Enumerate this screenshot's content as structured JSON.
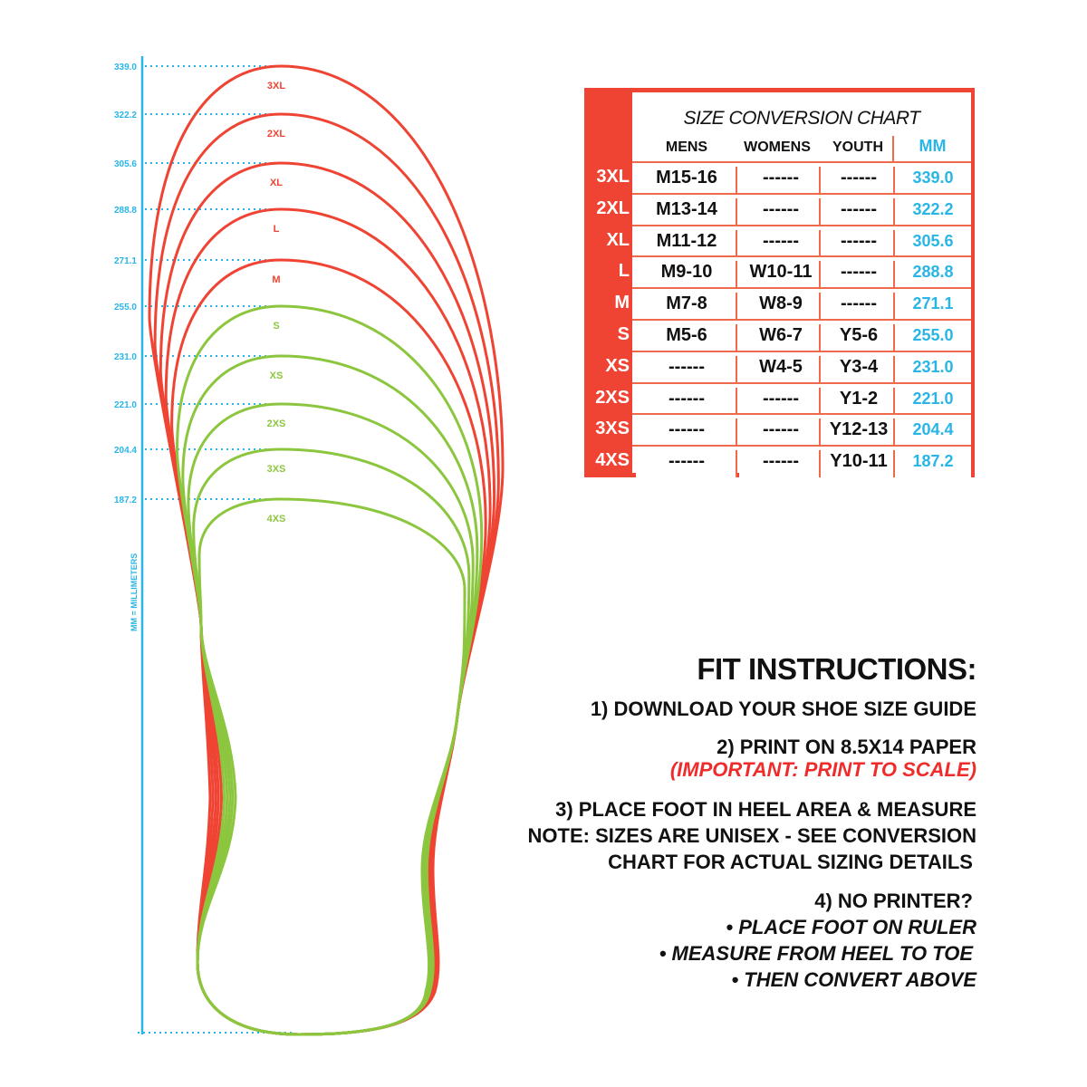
{
  "ruler": {
    "caption": "MM = MILLIMETERS",
    "color": "#29b6e6",
    "marks": [
      "339.0",
      "322.2",
      "305.6",
      "288.8",
      "271.1",
      "255.0",
      "231.0",
      "221.0",
      "204.4",
      "187.2"
    ]
  },
  "outlines": [
    {
      "size": "3XL",
      "color": "#ef4433"
    },
    {
      "size": "2XL",
      "color": "#ef4433"
    },
    {
      "size": "XL",
      "color": "#ef4433"
    },
    {
      "size": "L",
      "color": "#ef4433"
    },
    {
      "size": "M",
      "color": "#ef4433"
    },
    {
      "size": "S",
      "color": "#8cc63f"
    },
    {
      "size": "XS",
      "color": "#8cc63f"
    },
    {
      "size": "2XS",
      "color": "#8cc63f"
    },
    {
      "size": "3XS",
      "color": "#8cc63f"
    },
    {
      "size": "4XS",
      "color": "#8cc63f"
    }
  ],
  "chart": {
    "title": "SIZE CONVERSION CHART",
    "headers": {
      "mens": "MENS",
      "womens": "WOMENS",
      "youth": "YOUTH",
      "mm": "MM"
    },
    "accent": "#ef4433",
    "rows": [
      {
        "size": "3XL",
        "mens": "M15-16",
        "womens": "------",
        "youth": "------",
        "mm": "339.0"
      },
      {
        "size": "2XL",
        "mens": "M13-14",
        "womens": "------",
        "youth": "------",
        "mm": "322.2"
      },
      {
        "size": "XL",
        "mens": "M11-12",
        "womens": "------",
        "youth": "------",
        "mm": "305.6"
      },
      {
        "size": "L",
        "mens": "M9-10",
        "womens": "W10-11",
        "youth": "------",
        "mm": "288.8"
      },
      {
        "size": "M",
        "mens": "M7-8",
        "womens": "W8-9",
        "youth": "------",
        "mm": "271.1"
      },
      {
        "size": "S",
        "mens": "M5-6",
        "womens": "W6-7",
        "youth": "Y5-6",
        "mm": "255.0"
      },
      {
        "size": "XS",
        "mens": "------",
        "womens": "W4-5",
        "youth": "Y3-4",
        "mm": "231.0"
      },
      {
        "size": "2XS",
        "mens": "------",
        "womens": "------",
        "youth": "Y1-2",
        "mm": "221.0"
      },
      {
        "size": "3XS",
        "mens": "------",
        "womens": "------",
        "youth": "Y12-13",
        "mm": "204.4"
      },
      {
        "size": "4XS",
        "mens": "------",
        "womens": "------",
        "youth": "Y10-11",
        "mm": "187.2"
      }
    ]
  },
  "fit": {
    "heading": "FIT INSTRUCTIONS:",
    "step1": "1) DOWNLOAD YOUR SHOE SIZE GUIDE",
    "step2": "2) PRINT ON 8.5X14 PAPER",
    "step2_note": "(IMPORTANT: PRINT TO SCALE)",
    "step3": "3) PLACE FOOT IN HEEL AREA & MEASURE",
    "note1": "NOTE: SIZES ARE UNISEX - SEE CONVERSION",
    "note2": "CHART FOR ACTUAL SIZING DETAILS",
    "step4": "4) NO PRINTER?",
    "bullets": [
      "• PLACE FOOT ON RULER",
      "• MEASURE FROM HEEL TO TOE",
      "• THEN CONVERT ABOVE"
    ]
  }
}
